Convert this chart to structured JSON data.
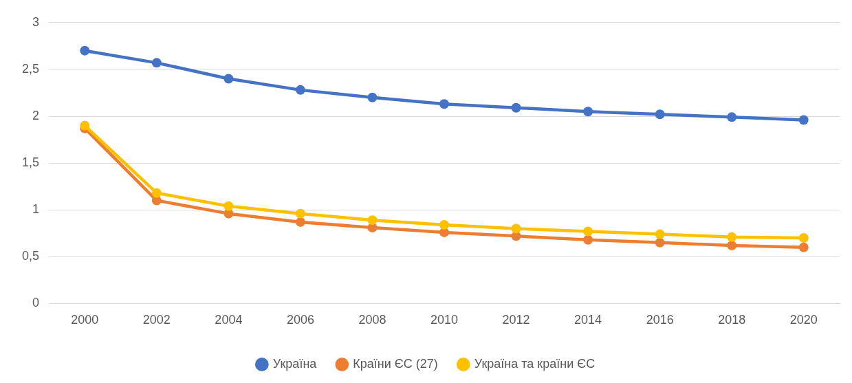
{
  "chart_data": {
    "type": "line",
    "categories": [
      "2000",
      "2002",
      "2004",
      "2006",
      "2008",
      "2010",
      "2012",
      "2014",
      "2016",
      "2018",
      "2020"
    ],
    "series": [
      {
        "name": "Україна",
        "color": "#4472c4",
        "values": [
          2.7,
          2.57,
          2.4,
          2.28,
          2.2,
          2.13,
          2.09,
          2.05,
          2.02,
          1.99,
          1.96
        ]
      },
      {
        "name": "Країни ЄС (27)",
        "color": "#ed7d31",
        "values": [
          1.87,
          1.1,
          0.96,
          0.87,
          0.81,
          0.76,
          0.72,
          0.68,
          0.65,
          0.62,
          0.6
        ]
      },
      {
        "name": "Україна та країни ЄС",
        "color": "#ffc000",
        "values": [
          1.9,
          1.18,
          1.04,
          0.96,
          0.89,
          0.84,
          0.8,
          0.77,
          0.74,
          0.71,
          0.7
        ]
      }
    ],
    "ylim": [
      0,
      3
    ],
    "yticks": [
      0,
      {
        "value": 0.5,
        "label": "0,5"
      },
      1,
      {
        "value": 1.5,
        "label": "1,5"
      },
      2,
      {
        "value": 2.5,
        "label": "2,5"
      },
      3
    ],
    "grid": "y",
    "legend": "bottom",
    "marker": "circle",
    "line_style": "solid"
  }
}
